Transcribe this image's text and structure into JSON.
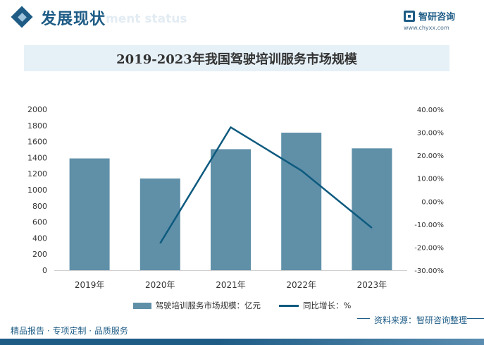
{
  "header": {
    "title": "发展现状",
    "ghost_text": "ment status"
  },
  "logo": {
    "name": "智研咨询",
    "url": "www.chyxx.com"
  },
  "chart_data": {
    "type": "bar",
    "title": "2019-2023年我国驾驶培训服务市场规模",
    "categories": [
      "2019年",
      "2020年",
      "2021年",
      "2022年",
      "2023年"
    ],
    "series": [
      {
        "name": "驾驶培训服务市场规模：亿元",
        "type": "bar",
        "axis": "left",
        "values": [
          1390,
          1140,
          1505,
          1710,
          1515
        ]
      },
      {
        "name": "同比增长：%",
        "type": "line",
        "axis": "right",
        "values": [
          null,
          -18.3,
          32.2,
          13.4,
          -11.6
        ]
      }
    ],
    "y_left": {
      "ylim": [
        0,
        2000
      ],
      "ticks": [
        "0",
        "200",
        "400",
        "600",
        "800",
        "1000",
        "1200",
        "1400",
        "1600",
        "1800",
        "2000"
      ]
    },
    "y_right": {
      "ylim": [
        -30,
        40
      ],
      "ticks": [
        "-30.00%",
        "-20.00%",
        "-10.00%",
        "0.00%",
        "10.00%",
        "20.00%",
        "30.00%",
        "40.00%"
      ]
    },
    "grid": false,
    "legend_position": "bottom",
    "colors": {
      "bar": "#5f90a8",
      "line": "#0e5a7f"
    }
  },
  "source": "资料来源：智研咨询整理",
  "footer": {
    "tagline": "精品报告 · 专项定制 · 品质服务"
  }
}
